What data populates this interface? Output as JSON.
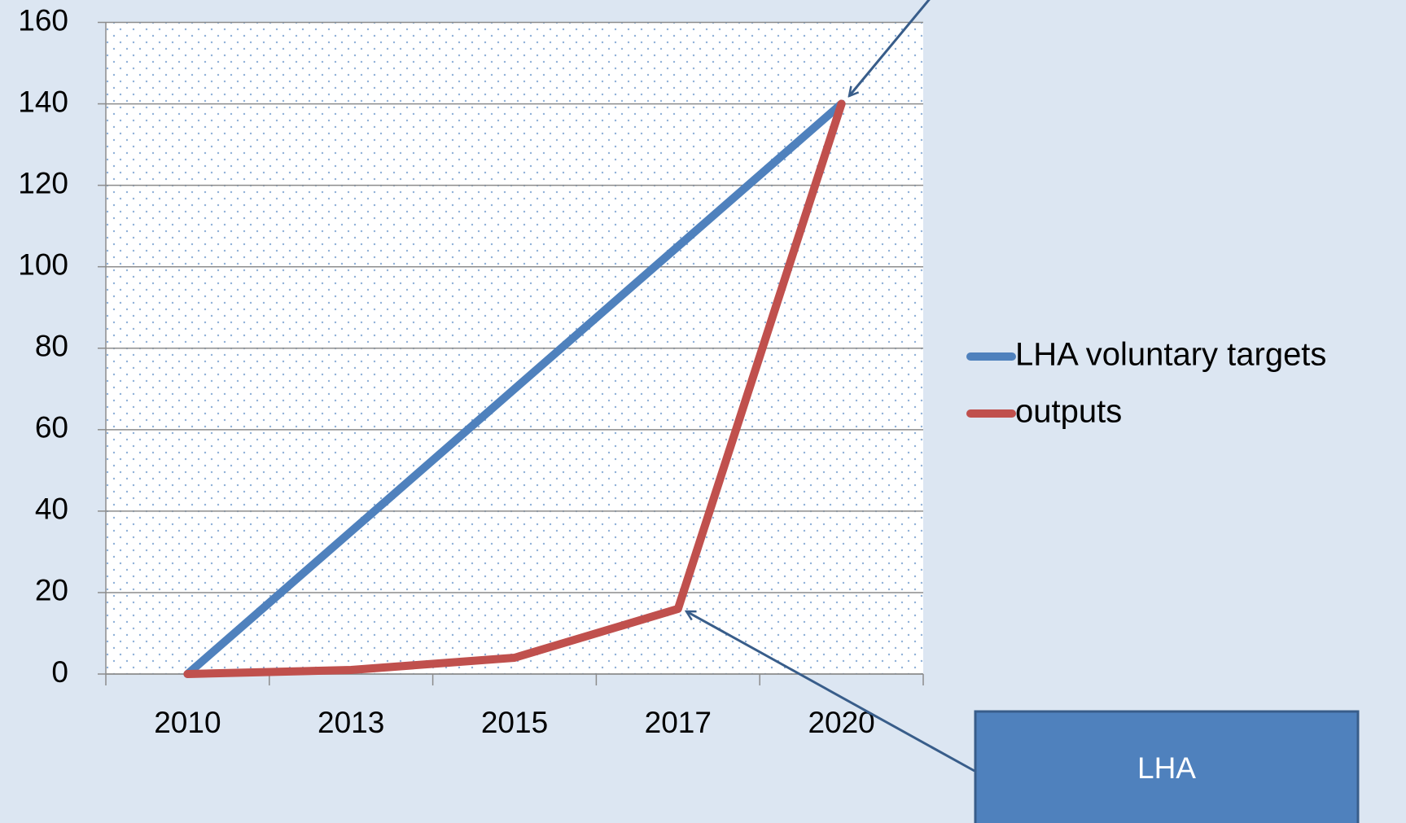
{
  "chart_data": {
    "type": "line",
    "categories": [
      "2010",
      "2013",
      "2015",
      "2017",
      "2020"
    ],
    "series": [
      {
        "name": "LHA voluntary targets",
        "color": "#4f81bd",
        "values": [
          0,
          35,
          70,
          105,
          140
        ]
      },
      {
        "name": "outputs",
        "color": "#c0504d",
        "values": [
          0,
          1,
          4,
          16,
          140
        ]
      }
    ],
    "ylim": [
      0,
      160
    ],
    "yticks": [
      0,
      20,
      40,
      60,
      80,
      100,
      120,
      140,
      160
    ],
    "grid": true,
    "legend": "right",
    "annotations": [
      "LHA"
    ]
  }
}
